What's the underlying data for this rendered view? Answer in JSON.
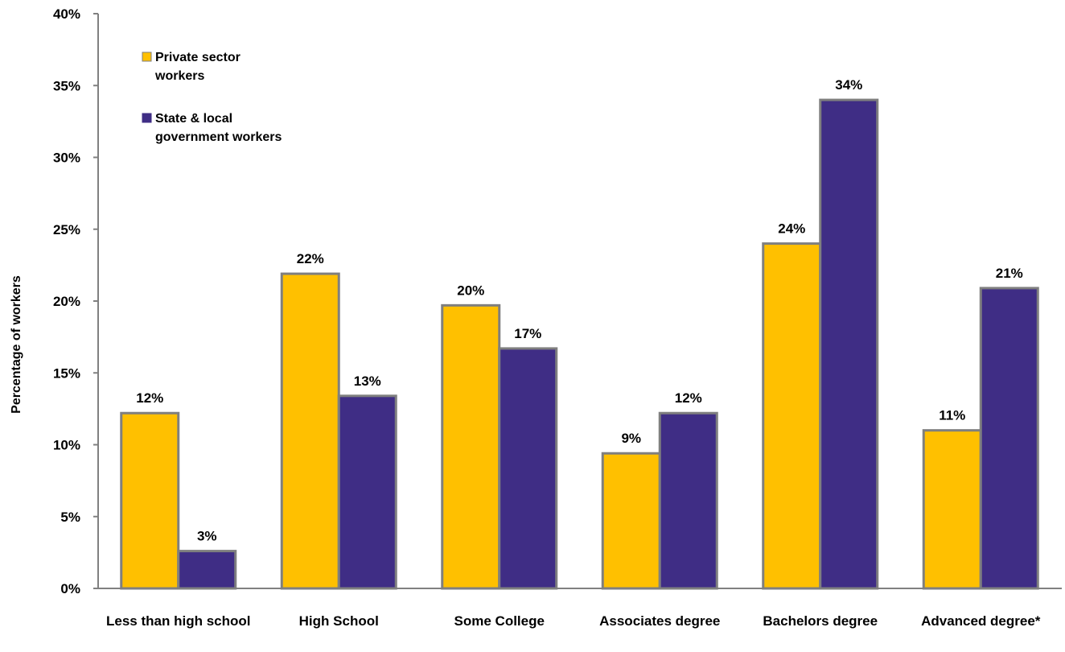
{
  "chart_data": {
    "type": "bar",
    "categories": [
      "Less than high school",
      "High School",
      "Some College",
      "Associates degree",
      "Bachelors degree",
      "Advanced degree*"
    ],
    "series": [
      {
        "name": "Private sector workers",
        "values": [
          12.2,
          21.9,
          19.7,
          9.4,
          24.0,
          11.0
        ],
        "labels": [
          "12%",
          "22%",
          "20%",
          "9%",
          "24%",
          "11%"
        ],
        "color": "#FFC000"
      },
      {
        "name": "State & local government workers",
        "values": [
          2.6,
          13.4,
          16.7,
          12.2,
          34.0,
          20.9
        ],
        "labels": [
          "3%",
          "13%",
          "17%",
          "12%",
          "34%",
          "21%"
        ],
        "color": "#3F2D85"
      }
    ],
    "title": "",
    "xlabel": "",
    "ylabel": "Percentage of workers",
    "ylim": [
      0,
      40
    ],
    "yticks": [
      "0%",
      "5%",
      "10%",
      "15%",
      "20%",
      "25%",
      "30%",
      "35%",
      "40%"
    ],
    "grid": false,
    "legend_position": "top-left",
    "bar_outline_color": "#7F7F7F",
    "axis_color": "#808080"
  }
}
